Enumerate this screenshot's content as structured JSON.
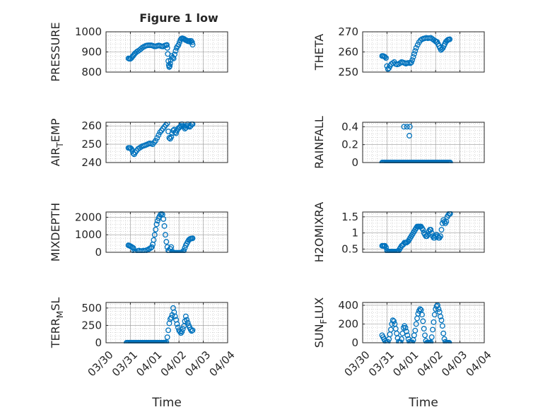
{
  "title": "Figure 1 low",
  "colors": {
    "marker": "#0072BD",
    "axis": "#262626",
    "grid": "#b0b0b0",
    "background": "#ffffff"
  },
  "chart_data": [
    {
      "id": "pressure",
      "type": "scatter",
      "marker": "open-circle",
      "ylabel": {
        "main": "PRESSURE",
        "sub": ""
      },
      "ylim": [
        800,
        1000
      ],
      "yticks": [
        800,
        900,
        1000
      ],
      "ytick_labels": [
        "800",
        "900",
        "1000"
      ],
      "xlim": [
        "03/30",
        "04/04"
      ],
      "show_xticklabels": false,
      "grid": true,
      "x": [
        0.92,
        0.96,
        1.0,
        1.04,
        1.08,
        1.12,
        1.16,
        1.2,
        1.26,
        1.32,
        1.38,
        1.44,
        1.5,
        1.56,
        1.62,
        1.68,
        1.74,
        1.8,
        1.86,
        1.92,
        1.98,
        2.04,
        2.1,
        2.16,
        2.22,
        2.28,
        2.34,
        2.4,
        2.46,
        2.5,
        2.52,
        2.54,
        2.56,
        2.58,
        2.6,
        2.62,
        2.64,
        2.66,
        2.7,
        2.74,
        2.78,
        2.82,
        2.86,
        2.9,
        2.94,
        2.98,
        3.02,
        3.06,
        3.1,
        3.14,
        3.18,
        3.22,
        3.26,
        3.3,
        3.34,
        3.38,
        3.42,
        3.46,
        3.5,
        3.54,
        3.56
      ],
      "y": [
        868,
        866,
        866,
        870,
        876,
        882,
        888,
        894,
        900,
        905,
        910,
        916,
        922,
        926,
        930,
        932,
        933,
        933,
        933,
        931,
        928,
        928,
        930,
        932,
        931,
        928,
        927,
        931,
        933,
        935,
        920,
        890,
        855,
        835,
        825,
        830,
        842,
        860,
        880,
        872,
        868,
        888,
        905,
        920,
        928,
        935,
        948,
        960,
        966,
        968,
        966,
        964,
        960,
        958,
        955,
        953,
        955,
        950,
        955,
        948,
        936
      ]
    },
    {
      "id": "theta",
      "type": "scatter",
      "marker": "open-circle",
      "ylabel": {
        "main": "THETA",
        "sub": ""
      },
      "ylim": [
        250,
        270
      ],
      "yticks": [
        250,
        260,
        270
      ],
      "ytick_labels": [
        "250",
        "260",
        "270"
      ],
      "xlim": [
        "03/30",
        "04/04"
      ],
      "show_xticklabels": false,
      "grid": true,
      "x": [
        0.8,
        0.84,
        0.88,
        0.92,
        0.96,
        1.0,
        1.04,
        1.08,
        1.12,
        1.18,
        1.24,
        1.3,
        1.36,
        1.42,
        1.48,
        1.54,
        1.6,
        1.66,
        1.72,
        1.78,
        1.84,
        1.9,
        1.96,
        2.0,
        2.04,
        2.08,
        2.12,
        2.16,
        2.2,
        2.26,
        2.32,
        2.38,
        2.44,
        2.5,
        2.56,
        2.62,
        2.68,
        2.74,
        2.8,
        2.86,
        2.92,
        2.98,
        3.02,
        3.06,
        3.1,
        3.14,
        3.18,
        3.22,
        3.26,
        3.3,
        3.34,
        3.38,
        3.42,
        3.46,
        3.5,
        3.54,
        3.58
      ],
      "y": [
        258,
        258,
        257.8,
        257.5,
        257,
        253,
        251.5,
        252,
        253,
        254,
        254.5,
        255,
        254,
        253.8,
        254,
        254.5,
        255,
        254.8,
        254.5,
        254.2,
        254.5,
        254.6,
        254.4,
        254.8,
        256,
        257.5,
        259,
        260.5,
        262,
        263.5,
        264.8,
        265.8,
        266.3,
        266.6,
        266.8,
        267,
        266.8,
        266.9,
        267,
        266.5,
        266,
        265.5,
        265,
        265,
        264,
        263,
        262,
        261,
        261.5,
        262,
        263,
        264,
        265,
        265.5,
        266,
        266.2,
        266.3
      ]
    },
    {
      "id": "air_temp",
      "type": "scatter",
      "marker": "open-circle",
      "ylabel": {
        "main": "AIR",
        "sub": "T",
        "tail": "EMP"
      },
      "ylim": [
        240,
        262
      ],
      "yticks": [
        240,
        250,
        260
      ],
      "ytick_labels": [
        "240",
        "250",
        "260"
      ],
      "xlim": [
        "03/30",
        "04/04"
      ],
      "show_xticklabels": false,
      "grid": true,
      "x": [
        0.92,
        0.96,
        1.0,
        1.04,
        1.08,
        1.12,
        1.16,
        1.2,
        1.26,
        1.32,
        1.38,
        1.44,
        1.5,
        1.56,
        1.62,
        1.68,
        1.74,
        1.8,
        1.86,
        1.92,
        1.98,
        2.04,
        2.1,
        2.16,
        2.22,
        2.28,
        2.34,
        2.4,
        2.46,
        2.52,
        2.56,
        2.6,
        2.64,
        2.68,
        2.72,
        2.76,
        2.8,
        2.84,
        2.88,
        2.92,
        2.96,
        3.0,
        3.04,
        3.08,
        3.12,
        3.16,
        3.2,
        3.24,
        3.28,
        3.32,
        3.36,
        3.4,
        3.44,
        3.48,
        3.52,
        3.56
      ],
      "y": [
        248,
        248,
        248,
        247.5,
        246.5,
        245,
        244.5,
        245.5,
        246.5,
        247.5,
        248,
        248.5,
        249,
        249.2,
        249.5,
        249.8,
        250.2,
        250.5,
        250.3,
        250,
        251,
        252,
        253.5,
        255,
        256.5,
        257.5,
        258.5,
        259.5,
        260.5,
        261.5,
        257,
        253.5,
        253,
        254,
        256,
        257.5,
        258,
        256.5,
        256,
        257.5,
        258.5,
        259,
        259.5,
        260,
        261,
        260,
        259.5,
        258.5,
        259,
        260,
        261,
        260,
        259.5,
        260,
        261,
        261
      ]
    },
    {
      "id": "rainfall",
      "type": "scatter",
      "marker": "open-circle",
      "ylabel": {
        "main": "RAINFALL",
        "sub": ""
      },
      "ylim": [
        0,
        0.45
      ],
      "yticks": [
        0,
        0.2,
        0.4
      ],
      "ytick_labels": [
        "0",
        "0.2",
        "0.4"
      ],
      "xlim": [
        "03/30",
        "04/04"
      ],
      "show_xticklabels": false,
      "grid": true,
      "x": [
        0.8,
        0.84,
        0.88,
        0.92,
        0.96,
        1.0,
        1.04,
        1.08,
        1.12,
        1.16,
        1.2,
        1.24,
        1.28,
        1.32,
        1.36,
        1.4,
        1.44,
        1.48,
        1.52,
        1.56,
        1.6,
        1.64,
        1.68,
        1.72,
        1.76,
        1.8,
        1.84,
        1.88,
        1.92,
        1.96,
        2.0,
        2.04,
        2.08,
        2.12,
        2.16,
        2.2,
        2.24,
        2.28,
        2.32,
        2.36,
        2.4,
        2.44,
        2.48,
        2.52,
        2.56,
        2.6,
        2.64,
        2.68,
        2.72,
        2.76,
        2.8,
        2.84,
        2.88,
        2.92,
        2.96,
        3.0,
        3.04,
        3.08,
        3.12,
        3.16,
        3.2,
        3.24,
        3.28,
        3.32,
        3.36,
        3.4,
        3.44,
        3.48,
        3.52,
        3.56,
        3.6,
        1.7,
        1.82,
        1.94,
        1.92
      ],
      "y": [
        0,
        0,
        0,
        0,
        0,
        0,
        0,
        0,
        0,
        0,
        0,
        0,
        0,
        0,
        0,
        0,
        0,
        0,
        0,
        0,
        0,
        0,
        0,
        0,
        0,
        0,
        0,
        0,
        0,
        0,
        0,
        0,
        0,
        0,
        0,
        0,
        0,
        0,
        0,
        0,
        0,
        0,
        0,
        0,
        0,
        0,
        0,
        0,
        0,
        0,
        0,
        0,
        0,
        0,
        0,
        0,
        0,
        0,
        0,
        0,
        0,
        0,
        0,
        0,
        0,
        0,
        0,
        0,
        0,
        0,
        0,
        0.4,
        0.4,
        0.4,
        0.3
      ]
    },
    {
      "id": "mixdepth",
      "type": "scatter",
      "marker": "open-circle",
      "ylabel": {
        "main": "MIXDEPTH",
        "sub": ""
      },
      "ylim": [
        0,
        2300
      ],
      "yticks": [
        0,
        1000,
        2000
      ],
      "ytick_labels": [
        "0",
        "1000",
        "2000"
      ],
      "xlim": [
        "03/30",
        "04/04"
      ],
      "show_xticklabels": false,
      "grid": true,
      "x": [
        0.92,
        0.96,
        1.0,
        1.04,
        1.08,
        1.12,
        1.16,
        1.2,
        1.24,
        1.3,
        1.36,
        1.42,
        1.48,
        1.54,
        1.6,
        1.66,
        1.72,
        1.78,
        1.84,
        1.88,
        1.92,
        1.96,
        2.0,
        2.04,
        2.08,
        2.12,
        2.16,
        2.2,
        2.24,
        2.28,
        2.32,
        2.36,
        2.4,
        2.44,
        2.48,
        2.52,
        2.56,
        2.6,
        2.64,
        2.68,
        2.72,
        2.76,
        2.8,
        2.84,
        2.88,
        2.92,
        2.96,
        3.0,
        3.04,
        3.08,
        3.12,
        3.16,
        3.2,
        3.24,
        3.28,
        3.32,
        3.36,
        3.4,
        3.44,
        3.48,
        3.52,
        3.56
      ],
      "y": [
        400,
        380,
        350,
        320,
        280,
        250,
        50,
        -30,
        20,
        80,
        100,
        60,
        80,
        100,
        60,
        120,
        150,
        200,
        250,
        300,
        450,
        700,
        1000,
        1300,
        1600,
        1800,
        1950,
        2050,
        2150,
        2200,
        2150,
        1900,
        1500,
        1000,
        600,
        300,
        100,
        50,
        200,
        300,
        50,
        -30,
        -30,
        -30,
        -30,
        -30,
        -30,
        -30,
        -30,
        -30,
        -20,
        50,
        100,
        250,
        400,
        500,
        600,
        700,
        750,
        780,
        790,
        800
      ]
    },
    {
      "id": "h2omixra",
      "type": "scatter",
      "marker": "open-circle",
      "ylabel": {
        "main": "H2OMIXRA",
        "sub": ""
      },
      "ylim": [
        0.4,
        1.65
      ],
      "yticks": [
        0.5,
        1,
        1.5
      ],
      "ytick_labels": [
        "0.5",
        "1",
        "1.5"
      ],
      "xlim": [
        "03/30",
        "04/04"
      ],
      "show_xticklabels": false,
      "grid": true,
      "x": [
        0.8,
        0.84,
        0.88,
        0.92,
        0.96,
        1.0,
        1.04,
        1.08,
        1.12,
        1.16,
        1.2,
        1.24,
        1.28,
        1.32,
        1.36,
        1.4,
        1.44,
        1.48,
        1.52,
        1.56,
        1.6,
        1.64,
        1.68,
        1.72,
        1.76,
        1.8,
        1.84,
        1.88,
        1.92,
        1.96,
        2.0,
        2.04,
        2.08,
        2.12,
        2.16,
        2.2,
        2.24,
        2.28,
        2.32,
        2.36,
        2.4,
        2.44,
        2.48,
        2.52,
        2.56,
        2.6,
        2.64,
        2.68,
        2.72,
        2.76,
        2.8,
        2.84,
        2.88,
        2.92,
        2.96,
        3.0,
        3.04,
        3.08,
        3.12,
        3.16,
        3.2,
        3.24,
        3.28,
        3.32,
        3.36,
        3.4,
        3.44,
        3.48,
        3.52,
        3.56,
        3.6
      ],
      "y": [
        0.6,
        0.6,
        0.6,
        0.6,
        0.55,
        0.45,
        0.42,
        0.42,
        0.42,
        0.42,
        0.42,
        0.42,
        0.42,
        0.42,
        0.42,
        0.42,
        0.42,
        0.45,
        0.5,
        0.55,
        0.6,
        0.62,
        0.65,
        0.7,
        0.7,
        0.7,
        0.72,
        0.75,
        0.8,
        0.85,
        0.9,
        0.95,
        1.0,
        1.05,
        1.1,
        1.15,
        1.2,
        1.2,
        1.2,
        1.2,
        1.2,
        1.15,
        1.1,
        1.0,
        0.95,
        0.9,
        0.9,
        0.95,
        1.05,
        1.1,
        1.1,
        1.0,
        0.9,
        0.85,
        0.85,
        0.9,
        0.95,
        0.9,
        0.85,
        0.85,
        0.9,
        1.1,
        1.3,
        1.4,
        1.35,
        1.3,
        1.35,
        1.5,
        1.55,
        1.6,
        1.6
      ]
    },
    {
      "id": "terr_msl",
      "type": "scatter",
      "marker": "open-circle",
      "ylabel": {
        "main": "TERR",
        "sub": "M",
        "tail": "SL"
      },
      "ylim": [
        0,
        580
      ],
      "yticks": [
        0,
        250,
        500
      ],
      "ytick_labels": [
        "0",
        "250",
        "500"
      ],
      "xlim": [
        "03/30",
        "04/04"
      ],
      "show_xticklabels": true,
      "xticks": [
        "03/30",
        "03/31",
        "04/01",
        "04/02",
        "04/03",
        "04/04"
      ],
      "xlabel": "Time",
      "grid": true,
      "x": [
        0.84,
        0.88,
        0.92,
        0.96,
        1.0,
        1.04,
        1.08,
        1.12,
        1.16,
        1.2,
        1.24,
        1.28,
        1.32,
        1.36,
        1.4,
        1.44,
        1.48,
        1.52,
        1.56,
        1.6,
        1.64,
        1.68,
        1.72,
        1.76,
        1.8,
        1.84,
        1.88,
        1.92,
        1.96,
        2.0,
        2.04,
        2.08,
        2.12,
        2.16,
        2.2,
        2.24,
        2.28,
        2.32,
        2.36,
        2.4,
        2.44,
        2.48,
        2.52,
        2.56,
        2.6,
        2.64,
        2.68,
        2.72,
        2.76,
        2.8,
        2.84,
        2.88,
        2.92,
        2.96,
        3.0,
        3.04,
        3.08,
        3.12,
        3.16,
        3.2,
        3.24,
        3.28,
        3.32,
        3.36,
        3.4,
        3.44,
        3.48,
        3.52,
        3.56
      ],
      "y": [
        0,
        0,
        0,
        0,
        0,
        0,
        0,
        0,
        0,
        0,
        0,
        0,
        0,
        0,
        0,
        0,
        0,
        0,
        0,
        0,
        0,
        0,
        0,
        0,
        0,
        0,
        0,
        0,
        0,
        0,
        0,
        0,
        0,
        0,
        0,
        0,
        0,
        0,
        0,
        0,
        0,
        10,
        80,
        180,
        280,
        340,
        360,
        400,
        500,
        440,
        380,
        330,
        270,
        220,
        180,
        160,
        140,
        160,
        200,
        240,
        310,
        380,
        330,
        290,
        250,
        220,
        190,
        170,
        180
      ]
    },
    {
      "id": "sun_flux",
      "type": "scatter",
      "marker": "open-circle",
      "ylabel": {
        "main": "SUN",
        "sub": "F",
        "tail": "LUX"
      },
      "ylim": [
        0,
        430
      ],
      "yticks": [
        0,
        200,
        400
      ],
      "ytick_labels": [
        "0",
        "200",
        "400"
      ],
      "xlim": [
        "03/30",
        "04/04"
      ],
      "show_xticklabels": true,
      "xticks": [
        "03/30",
        "03/31",
        "04/01",
        "04/02",
        "04/03",
        "04/04"
      ],
      "xlabel": "Time",
      "grid": true,
      "x": [
        0.8,
        0.84,
        0.88,
        0.92,
        0.96,
        1.0,
        1.04,
        1.08,
        1.12,
        1.16,
        1.2,
        1.24,
        1.28,
        1.32,
        1.36,
        1.4,
        1.44,
        1.48,
        1.52,
        1.56,
        1.6,
        1.64,
        1.68,
        1.72,
        1.76,
        1.8,
        1.84,
        1.88,
        1.92,
        1.96,
        2.0,
        2.04,
        2.08,
        2.12,
        2.16,
        2.2,
        2.24,
        2.28,
        2.32,
        2.36,
        2.4,
        2.44,
        2.48,
        2.52,
        2.56,
        2.6,
        2.64,
        2.68,
        2.72,
        2.76,
        2.8,
        2.84,
        2.88,
        2.92,
        2.96,
        3.0,
        3.04,
        3.08,
        3.12,
        3.16,
        3.2,
        3.24,
        3.28,
        3.32,
        3.36,
        3.4,
        3.44,
        3.48,
        3.52,
        3.56
      ],
      "y": [
        80,
        60,
        40,
        20,
        5,
        0,
        10,
        40,
        90,
        140,
        200,
        240,
        230,
        200,
        150,
        100,
        50,
        10,
        0,
        5,
        40,
        100,
        160,
        180,
        160,
        120,
        80,
        40,
        10,
        0,
        0,
        5,
        30,
        80,
        130,
        200,
        260,
        310,
        340,
        360,
        350,
        300,
        230,
        150,
        80,
        20,
        0,
        0,
        0,
        0,
        5,
        60,
        140,
        220,
        300,
        360,
        390,
        400,
        360,
        330,
        280,
        240,
        180,
        100,
        40,
        10,
        0,
        0,
        0,
        0
      ]
    }
  ]
}
